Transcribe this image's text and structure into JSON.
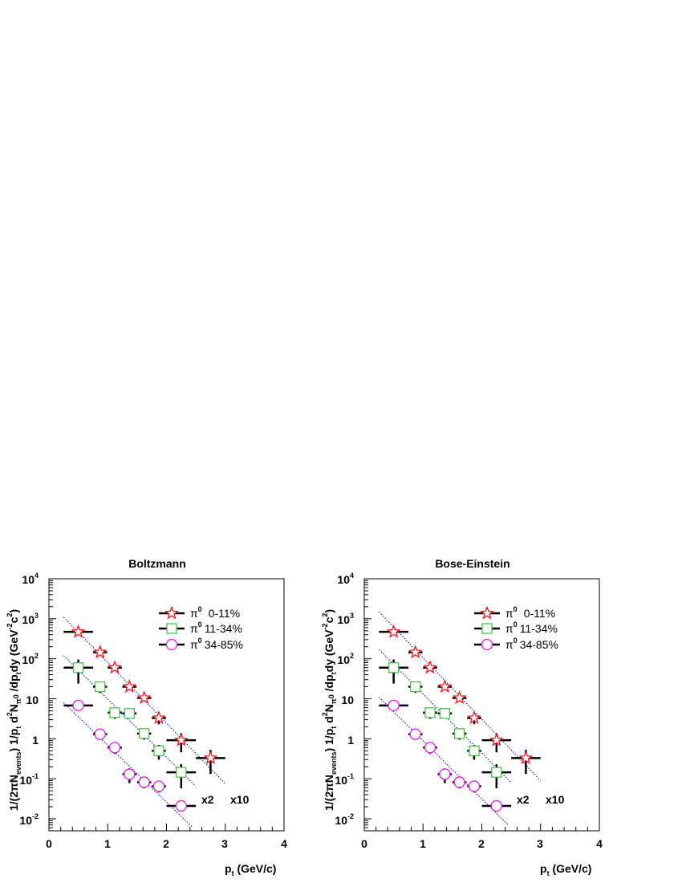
{
  "chart_data": [
    {
      "type": "scatter",
      "title": "Boltzmann",
      "xlabel": "p_t (GeV/c)",
      "ylabel": "1/(2πN_events) 1/p_t d²N_π⁰/dp_t dy (GeV⁻²c²)",
      "xlim": [
        0,
        4
      ],
      "ylim": [
        0.005,
        10000
      ],
      "yscale": "log",
      "x_ticks": [
        "0",
        "1",
        "2",
        "3",
        "4"
      ],
      "y_ticks": [
        {
          "base": "10",
          "exp": "-2"
        },
        {
          "base": "10",
          "exp": "-1"
        },
        {
          "base": "1",
          "exp": ""
        },
        {
          "base": "10",
          "exp": ""
        },
        {
          "base": "10",
          "exp": "2"
        },
        {
          "base": "10",
          "exp": "3"
        },
        {
          "base": "10",
          "exp": "4"
        }
      ],
      "multipliers": [
        "x2",
        "x10"
      ],
      "series": [
        {
          "name": "0-11%",
          "marker": "star",
          "color": "#e8161b",
          "x": [
            0.5,
            0.87,
            1.12,
            1.37,
            1.62,
            1.87,
            2.25,
            2.75
          ],
          "y": [
            470,
            145,
            60,
            20,
            10.5,
            3.3,
            0.92,
            0.33
          ],
          "x_err": [
            0.25,
            0.12,
            0.12,
            0.12,
            0.12,
            0.12,
            0.25,
            0.25
          ],
          "y_err_frac": [
            0.0,
            0.0,
            0.0,
            0.0,
            0.0,
            0.3,
            0.5,
            0.6
          ],
          "fit": {
            "x0": 0.25,
            "y0": 1100,
            "x1": 3.0,
            "y1": 0.075
          }
        },
        {
          "name": "11-34%",
          "marker": "square",
          "color": "#4cbf4c",
          "x": [
            0.5,
            0.87,
            1.12,
            1.37,
            1.62,
            1.87,
            2.25
          ],
          "y": [
            60,
            20,
            4.5,
            4.3,
            1.35,
            0.5,
            0.145
          ],
          "x_err": [
            0.25,
            0.12,
            0.12,
            0.12,
            0.12,
            0.12,
            0.25
          ],
          "y_err_frac": [
            0.6,
            0.3,
            0.3,
            0.25,
            0.3,
            0.4,
            0.6
          ],
          "fit": {
            "x0": 0.25,
            "y0": 120,
            "x1": 2.5,
            "y1": 0.065
          }
        },
        {
          "name": "34-85%",
          "marker": "circle",
          "color": "#e01ee0",
          "x": [
            0.5,
            0.87,
            1.12,
            1.37,
            1.62,
            1.87,
            2.25
          ],
          "y": [
            6.8,
            1.3,
            0.6,
            0.13,
            0.082,
            0.065,
            0.021
          ],
          "x_err": [
            0.25,
            0.12,
            0.12,
            0.12,
            0.12,
            0.12,
            0.25
          ],
          "y_err_frac": [
            0.0,
            0.0,
            0.3,
            0.4,
            0.3,
            0.3,
            0.0
          ],
          "fit": {
            "x0": 0.25,
            "y0": 8,
            "x1": 2.45,
            "y1": 0.006
          }
        }
      ]
    },
    {
      "type": "scatter",
      "title": "Bose-Einstein",
      "xlabel": "p_t (GeV/c)",
      "ylabel": "1/(2πN_events) 1/p_t d²N_π⁰/dp_t dy (GeV⁻²c²)",
      "xlim": [
        0,
        4
      ],
      "ylim": [
        0.005,
        10000
      ],
      "yscale": "log",
      "x_ticks": [
        "0",
        "1",
        "2",
        "3",
        "4"
      ],
      "y_ticks": [
        {
          "base": "10",
          "exp": "-2"
        },
        {
          "base": "10",
          "exp": "-1"
        },
        {
          "base": "1",
          "exp": ""
        },
        {
          "base": "10",
          "exp": ""
        },
        {
          "base": "10",
          "exp": "2"
        },
        {
          "base": "10",
          "exp": "3"
        },
        {
          "base": "10",
          "exp": "4"
        }
      ],
      "multipliers": [
        "x2",
        "x10"
      ],
      "series": [
        {
          "name": "0-11%",
          "marker": "star",
          "color": "#e8161b",
          "x": [
            0.5,
            0.87,
            1.12,
            1.37,
            1.62,
            1.87,
            2.25,
            2.75
          ],
          "y": [
            470,
            145,
            60,
            20,
            10.5,
            3.3,
            0.92,
            0.33
          ],
          "x_err": [
            0.25,
            0.12,
            0.12,
            0.12,
            0.12,
            0.12,
            0.25,
            0.25
          ],
          "y_err_frac": [
            0.0,
            0.0,
            0.0,
            0.0,
            0.0,
            0.3,
            0.5,
            0.6
          ],
          "fit": {
            "x0": 0.25,
            "y0": 1500,
            "x1": 3.0,
            "y1": 0.09
          }
        },
        {
          "name": "11-34%",
          "marker": "square",
          "color": "#4cbf4c",
          "x": [
            0.5,
            0.87,
            1.12,
            1.37,
            1.62,
            1.87,
            2.25
          ],
          "y": [
            60,
            20,
            4.5,
            4.3,
            1.35,
            0.5,
            0.145
          ],
          "x_err": [
            0.25,
            0.12,
            0.12,
            0.12,
            0.12,
            0.12,
            0.25
          ],
          "y_err_frac": [
            0.6,
            0.3,
            0.3,
            0.25,
            0.3,
            0.4,
            0.6
          ],
          "fit": {
            "x0": 0.25,
            "y0": 170,
            "x1": 2.5,
            "y1": 0.08
          }
        },
        {
          "name": "34-85%",
          "marker": "circle",
          "color": "#e01ee0",
          "x": [
            0.5,
            0.87,
            1.12,
            1.37,
            1.62,
            1.87,
            2.25
          ],
          "y": [
            6.8,
            1.3,
            0.6,
            0.13,
            0.082,
            0.065,
            0.021
          ],
          "x_err": [
            0.25,
            0.12,
            0.12,
            0.12,
            0.12,
            0.12,
            0.25
          ],
          "y_err_frac": [
            0.0,
            0.0,
            0.3,
            0.4,
            0.3,
            0.3,
            0.0
          ],
          "fit": {
            "x0": 0.25,
            "y0": 11,
            "x1": 2.45,
            "y1": 0.007
          }
        }
      ]
    }
  ],
  "legend": {
    "particle_base": "π",
    "particle_sup": "0",
    "fit_color": "#1e1ec8"
  },
  "axis_text": {
    "x_base": "p",
    "x_sub": "t",
    "x_unit": " (GeV/c)",
    "y_part1": "1/(2πN",
    "y_sub_events": "events",
    "y_part2": ") 1/p",
    "y_sub_t": "t",
    "y_part3": " d",
    "y_sup_2": "2",
    "y_part4": "N",
    "y_sub_pi": "π",
    "y_sup_pi0": "0",
    "y_part5": " /dp",
    "y_sub_t2": "t",
    "y_part6": "dy (GeV",
    "y_sup_m2": "-2",
    "y_part7": "c",
    "y_sup_c2": "2",
    "y_part8": ")"
  }
}
